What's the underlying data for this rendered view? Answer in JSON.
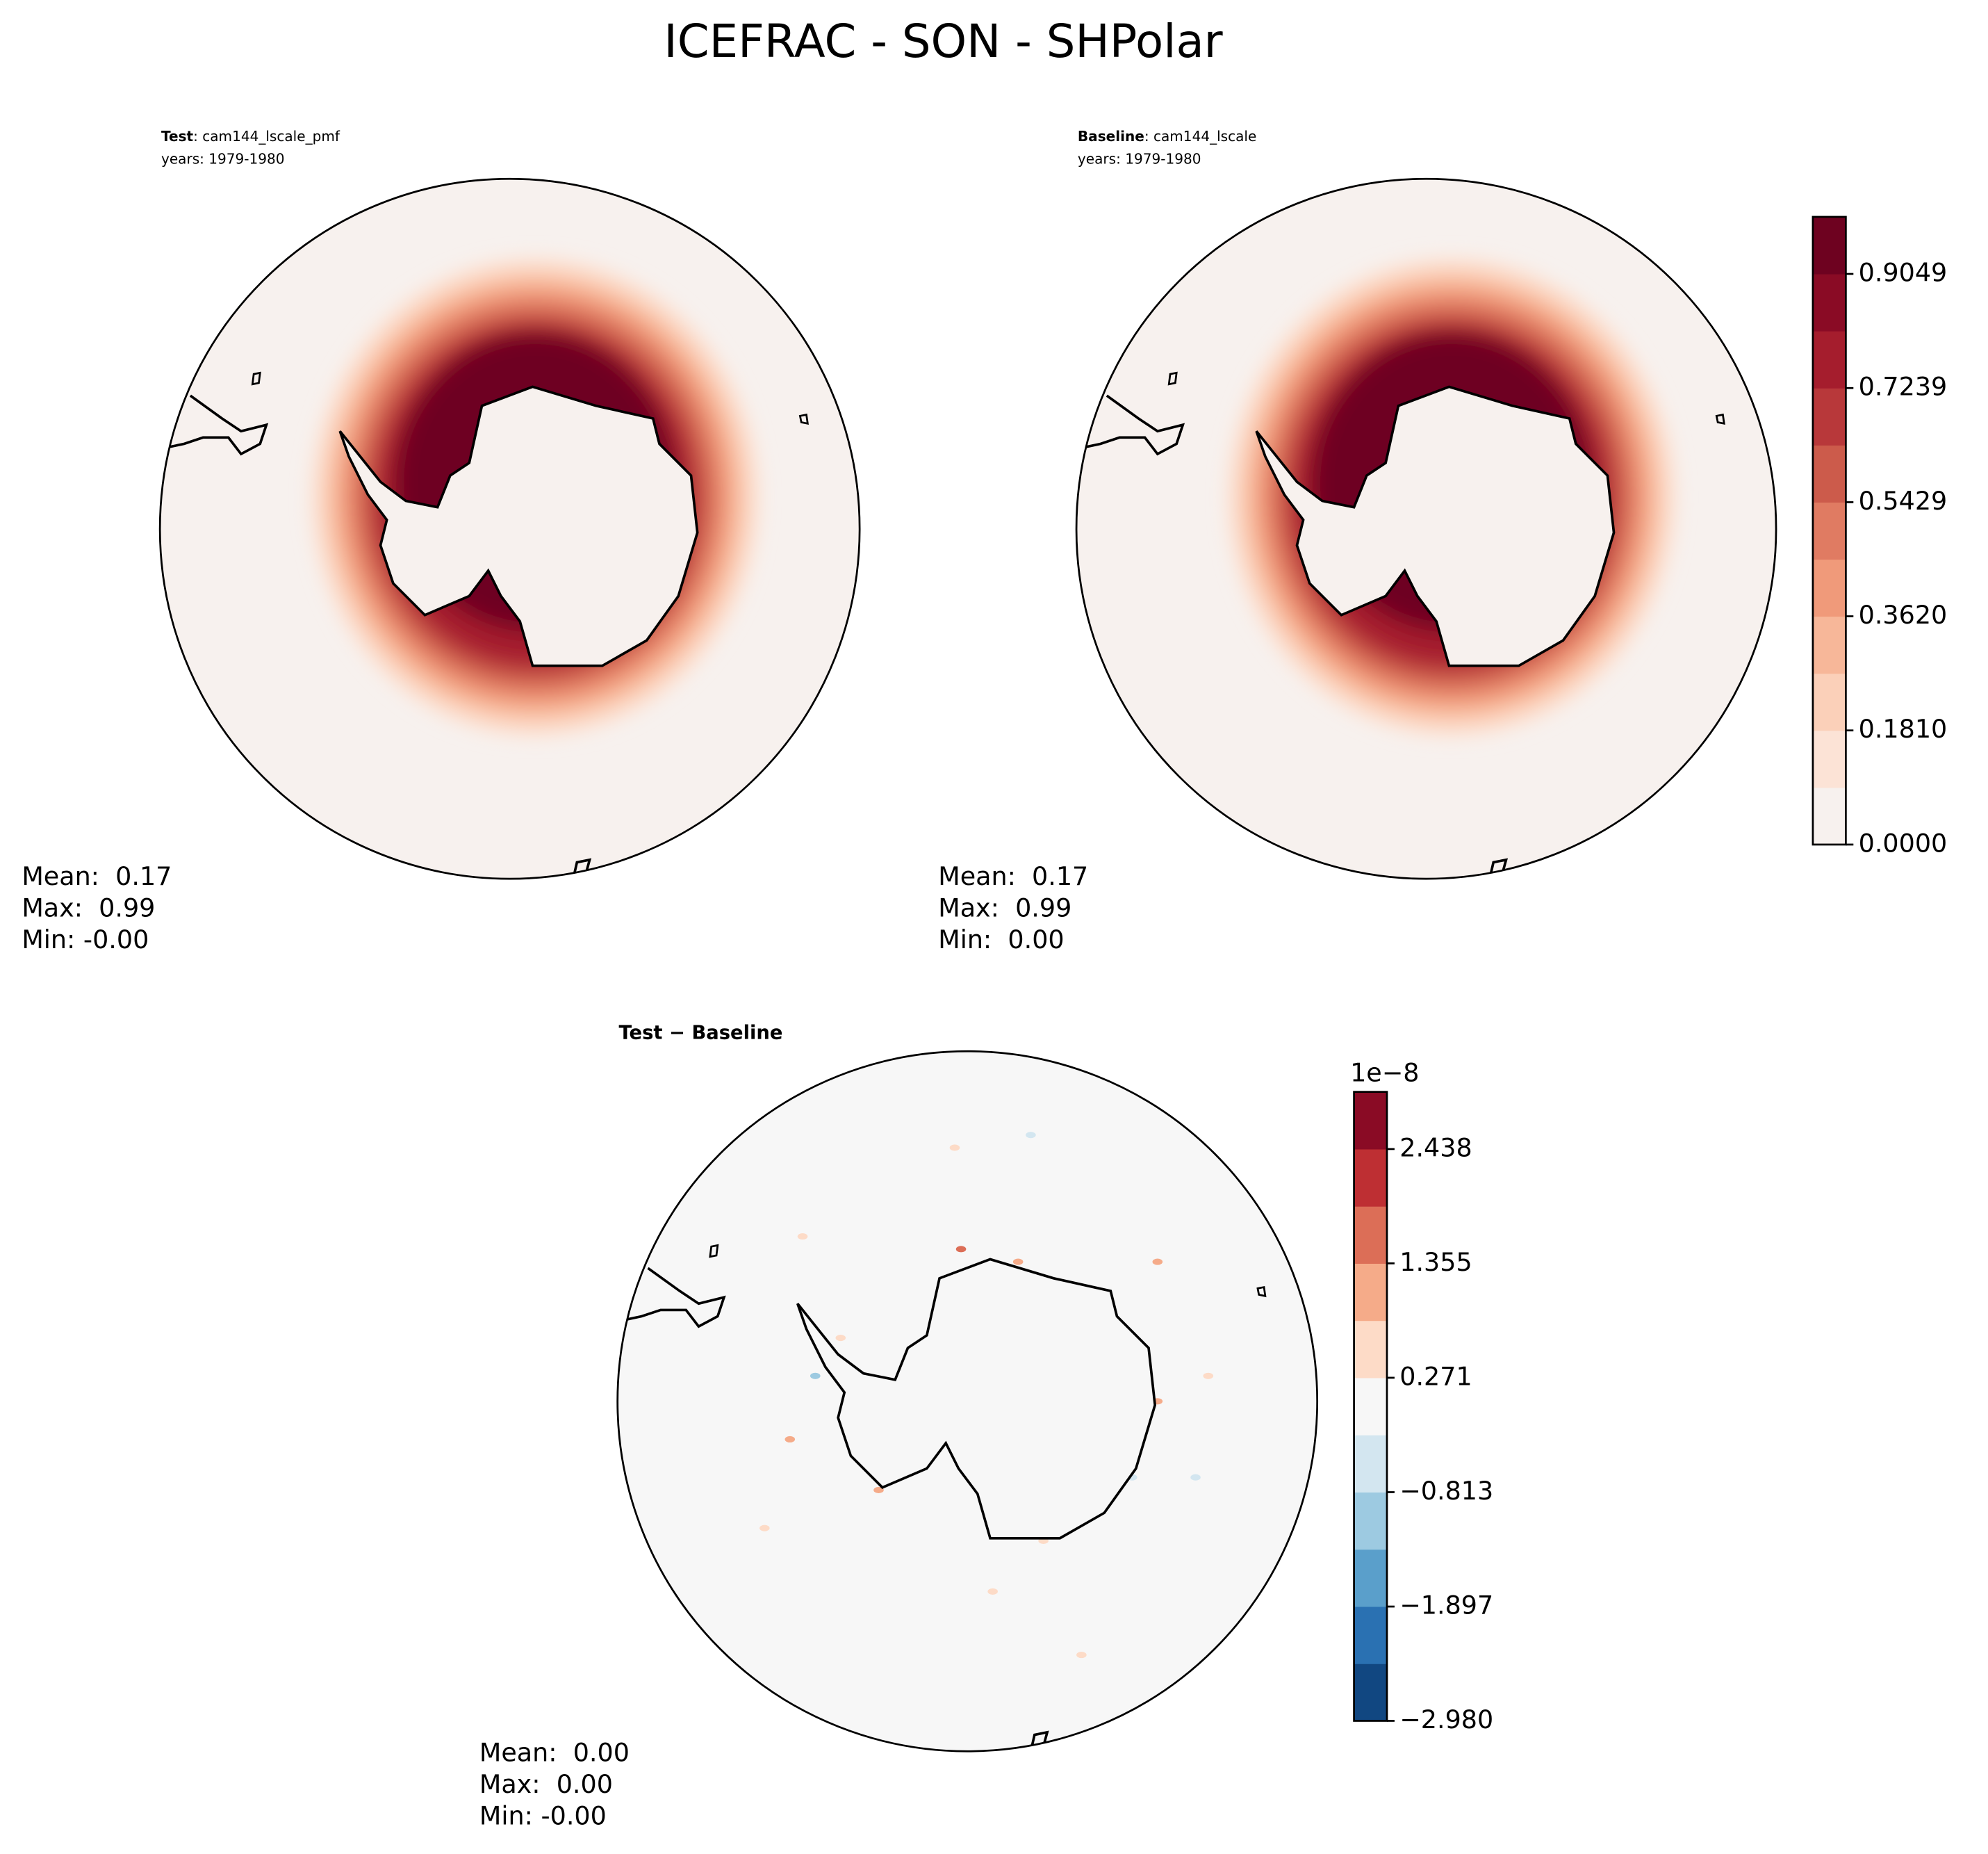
{
  "title": "ICEFRAC - SON - SHPolar",
  "panels": [
    {
      "label": "Test",
      "case": ": cam144_lscale_pmf",
      "years": "years: 1979-1980",
      "stats": [
        "Mean:  0.17",
        "Max:  0.99",
        "Min: -0.00"
      ]
    },
    {
      "label": "Baseline",
      "case": ": cam144_lscale",
      "years": "years: 1979-1980",
      "stats": [
        "Mean:  0.17",
        "Max:  0.99",
        "Min:  0.00"
      ]
    },
    {
      "label": "Test − Baseline",
      "stats": [
        "Mean:  0.00",
        "Max:  0.00",
        "Min: -0.00"
      ]
    }
  ],
  "colorbars": [
    {
      "lim": [
        0,
        0.9954
      ],
      "ticks": [
        {
          "value": 0,
          "label": "0.0000"
        },
        {
          "value": 0.181,
          "label": "0.1810"
        },
        {
          "value": 0.362,
          "label": "0.3620"
        },
        0.5429,
        0.7239,
        0.9049
      ],
      "colors": [
        "#f7f1ee",
        "#fce3d6",
        "#fbd0b9",
        "#f7b799",
        "#f09a7a",
        "#e07b62",
        "#cc5b4b",
        "#b8383a",
        "#a51d2d",
        "#8a0b25",
        "#6e0220"
      ]
    },
    {
      "lim": [
        -2.98,
        2.98
      ],
      "offset": "1e−8",
      "ticks": [
        {
          "value": -2.98,
          "label": "−2.980"
        },
        {
          "value": -1.897,
          "label": "−1.897"
        },
        {
          "value": -0.813,
          "label": "−0.813"
        },
        0.271,
        1.355,
        2.438
      ],
      "colors": [
        "#114781",
        "#2a71b2",
        "#5a9fcb",
        "#9dcae1",
        "#d3e6f0",
        "#f7f7f7",
        "#fddbc7",
        "#f5ab89",
        "#dc6e57",
        "#be2f33",
        "#8a0b25"
      ]
    }
  ]
}
